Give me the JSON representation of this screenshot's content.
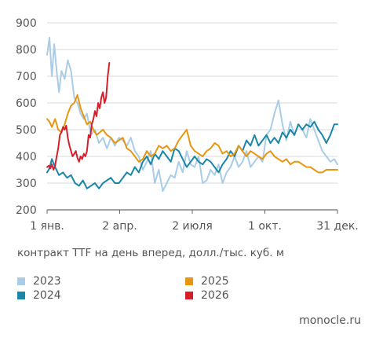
{
  "chart_data": {
    "type": "line",
    "ylim": [
      200,
      900
    ],
    "yticks": [
      200,
      300,
      400,
      500,
      600,
      700,
      800,
      900
    ],
    "xticks": [
      {
        "label": "1 янв.",
        "day": 0
      },
      {
        "label": "2 апр.",
        "day": 91
      },
      {
        "label": "2 июля",
        "day": 182
      },
      {
        "label": "1 окт.",
        "day": 273
      },
      {
        "label": "31 дек.",
        "day": 364
      }
    ],
    "grid": "horizontal",
    "caption": "контракт TTF на день вперед, долл./тыс. куб. м",
    "series": [
      {
        "name": "2023",
        "color": "#a9cde6",
        "x": [
          0,
          3,
          6,
          9,
          12,
          15,
          18,
          22,
          26,
          30,
          34,
          38,
          42,
          46,
          50,
          55,
          60,
          65,
          70,
          75,
          80,
          85,
          90,
          95,
          100,
          105,
          110,
          115,
          120,
          125,
          130,
          135,
          140,
          145,
          150,
          155,
          160,
          165,
          170,
          175,
          180,
          185,
          190,
          195,
          200,
          205,
          210,
          215,
          220,
          225,
          230,
          235,
          240,
          245,
          250,
          255,
          260,
          265,
          270,
          275,
          280,
          285,
          290,
          295,
          300,
          305,
          310,
          315,
          320,
          325,
          330,
          335,
          340,
          345,
          350,
          355,
          360,
          364
        ],
        "y": [
          780,
          845,
          700,
          820,
          720,
          640,
          720,
          690,
          760,
          720,
          620,
          600,
          560,
          540,
          560,
          480,
          500,
          450,
          470,
          430,
          470,
          440,
          470,
          460,
          440,
          470,
          420,
          400,
          350,
          380,
          420,
          300,
          350,
          270,
          300,
          330,
          320,
          380,
          340,
          420,
          370,
          360,
          400,
          300,
          310,
          350,
          330,
          370,
          300,
          340,
          360,
          400,
          360,
          380,
          420,
          360,
          380,
          400,
          380,
          480,
          500,
          560,
          610,
          520,
          460,
          530,
          480,
          520,
          500,
          470,
          540,
          500,
          460,
          420,
          400,
          380,
          390,
          370
        ]
      },
      {
        "name": "2024",
        "color": "#1a86a8",
        "x": [
          0,
          3,
          6,
          10,
          15,
          20,
          25,
          30,
          35,
          40,
          45,
          50,
          55,
          60,
          65,
          70,
          75,
          80,
          85,
          90,
          95,
          100,
          105,
          110,
          115,
          120,
          125,
          130,
          135,
          140,
          145,
          150,
          155,
          160,
          165,
          170,
          175,
          180,
          185,
          190,
          195,
          200,
          205,
          210,
          215,
          220,
          225,
          230,
          235,
          240,
          245,
          250,
          255,
          260,
          265,
          270,
          275,
          280,
          285,
          290,
          295,
          300,
          305,
          310,
          315,
          320,
          325,
          330,
          335,
          340,
          345,
          350,
          355,
          360,
          364
        ],
        "y": [
          340,
          355,
          390,
          360,
          330,
          340,
          320,
          330,
          300,
          290,
          310,
          280,
          290,
          300,
          280,
          300,
          310,
          320,
          300,
          300,
          320,
          340,
          330,
          360,
          340,
          380,
          400,
          370,
          410,
          390,
          420,
          400,
          380,
          430,
          420,
          390,
          360,
          380,
          400,
          380,
          370,
          390,
          380,
          360,
          340,
          370,
          390,
          420,
          400,
          440,
          420,
          460,
          440,
          480,
          440,
          460,
          480,
          450,
          470,
          450,
          490,
          470,
          500,
          480,
          520,
          500,
          520,
          510,
          530,
          500,
          480,
          450,
          480,
          520,
          520
        ]
      },
      {
        "name": "2025",
        "color": "#e8960f",
        "x": [
          0,
          3,
          6,
          10,
          14,
          18,
          22,
          26,
          30,
          34,
          38,
          42,
          46,
          50,
          54,
          58,
          62,
          66,
          70,
          75,
          80,
          85,
          90,
          95,
          100,
          105,
          110,
          115,
          120,
          125,
          130,
          135,
          140,
          145,
          150,
          155,
          160,
          165,
          170,
          175,
          180,
          185,
          190,
          195,
          200,
          205,
          210,
          215,
          220,
          225,
          230,
          235,
          240,
          245,
          250,
          255,
          260,
          265,
          270,
          275,
          280,
          285,
          290,
          295,
          300,
          305,
          310,
          315,
          320,
          325,
          330,
          335,
          340,
          345,
          350,
          355,
          360,
          364
        ],
        "y": [
          540,
          530,
          510,
          540,
          500,
          490,
          520,
          560,
          590,
          600,
          630,
          580,
          550,
          520,
          530,
          500,
          480,
          490,
          500,
          480,
          470,
          450,
          460,
          470,
          430,
          420,
          400,
          380,
          390,
          420,
          400,
          410,
          440,
          430,
          440,
          420,
          430,
          460,
          480,
          500,
          440,
          420,
          410,
          400,
          420,
          430,
          450,
          440,
          410,
          420,
          400,
          410,
          440,
          420,
          400,
          420,
          410,
          400,
          390,
          410,
          420,
          400,
          390,
          380,
          390,
          370,
          380,
          380,
          370,
          360,
          360,
          350,
          340,
          340,
          350,
          350,
          350,
          350
        ]
      },
      {
        "name": "2026",
        "color": "#d61f2b",
        "x": [
          0,
          2,
          4,
          6,
          8,
          10,
          12,
          14,
          16,
          18,
          20,
          22,
          24,
          26,
          28,
          30,
          32,
          34,
          36,
          38,
          40,
          42,
          44,
          46,
          48,
          50,
          52,
          54,
          56,
          58,
          60,
          62,
          64,
          66,
          68,
          70,
          72,
          74,
          76,
          78
        ],
        "y": [
          360,
          365,
          355,
          370,
          350,
          365,
          400,
          430,
          480,
          490,
          510,
          500,
          515,
          470,
          440,
          420,
          400,
          410,
          420,
          395,
          380,
          400,
          390,
          410,
          400,
          420,
          480,
          470,
          520,
          540,
          570,
          550,
          600,
          580,
          620,
          640,
          600,
          620,
          700,
          750
        ]
      }
    ]
  },
  "legend": [
    {
      "label": "2023",
      "color": "#a9cde6"
    },
    {
      "label": "2024",
      "color": "#1a86a8"
    },
    {
      "label": "2025",
      "color": "#e8960f"
    },
    {
      "label": "2026",
      "color": "#d61f2b"
    }
  ],
  "source": "monocle.ru"
}
